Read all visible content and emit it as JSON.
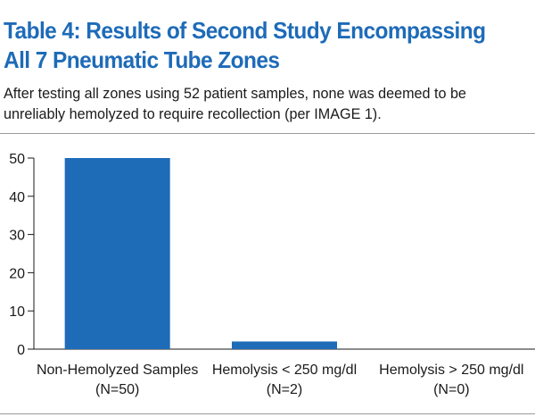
{
  "title": "Table 4: Results of Second Study Encompassing All 7 Pneumatic Tube Zones",
  "subtitle": "After testing all zones using 52 patient samples, none was deemed to be unreliably hemolyzed to require recollection (per IMAGE 1).",
  "chart_data": {
    "type": "bar",
    "categories": [
      [
        "Non-Hemolyzed Samples",
        "(N=50)"
      ],
      [
        "Hemolysis < 250 mg/dl",
        "(N=2)"
      ],
      [
        "Hemolysis > 250 mg/dl",
        "(N=0)"
      ]
    ],
    "values": [
      50,
      2,
      0
    ],
    "yticks": [
      0,
      10,
      20,
      30,
      40,
      50
    ],
    "ylim": [
      0,
      50
    ],
    "grid": false,
    "colors": {
      "bar": "#1e6bb8",
      "axis": "#1a1a1a"
    }
  }
}
